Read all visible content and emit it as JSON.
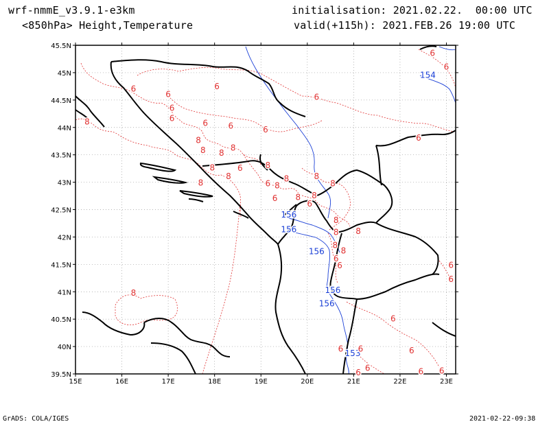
{
  "header": {
    "model": "wrf-nmmE_v3.9.1-e3km",
    "field": "<850hPa> Height,Temperature",
    "init": "initialisation: 2021.02.22.  00:00 UTC",
    "valid": "valid(+115h): 2021.FEB.26 19:00 UTC"
  },
  "axes": {
    "x_ticks": [
      "15E",
      "16E",
      "17E",
      "18E",
      "19E",
      "20E",
      "21E",
      "22E",
      "23E"
    ],
    "y_ticks": [
      "45.5N",
      "45N",
      "44.5N",
      "44N",
      "43.5N",
      "43N",
      "42.5N",
      "42N",
      "41.5N",
      "41N",
      "40.5N",
      "40N",
      "39.5N"
    ],
    "lon_range": [
      15,
      23.2
    ],
    "lat_range": [
      39.5,
      45.5
    ]
  },
  "contours": {
    "height_color": "#1a3fd6",
    "temperature_color": "#e03030",
    "height_labels": [
      {
        "text": "154",
        "lon": 22.6,
        "lat": 44.95
      },
      {
        "text": "156",
        "lon": 19.6,
        "lat": 42.4
      },
      {
        "text": "156",
        "lon": 19.6,
        "lat": 42.13
      },
      {
        "text": "156",
        "lon": 20.2,
        "lat": 41.73
      },
      {
        "text": "156",
        "lon": 20.55,
        "lat": 41.02
      },
      {
        "text": "156",
        "lon": 20.42,
        "lat": 40.78
      },
      {
        "text": "153",
        "lon": 20.98,
        "lat": 39.87
      }
    ],
    "temperature_labels": [
      {
        "text": "6",
        "lon": 16.25,
        "lat": 44.7
      },
      {
        "text": "6",
        "lon": 17.0,
        "lat": 44.6
      },
      {
        "text": "6",
        "lon": 17.08,
        "lat": 44.35
      },
      {
        "text": "6",
        "lon": 17.08,
        "lat": 44.16
      },
      {
        "text": "6",
        "lon": 17.8,
        "lat": 44.07
      },
      {
        "text": "6",
        "lon": 18.35,
        "lat": 44.02
      },
      {
        "text": "6",
        "lon": 19.1,
        "lat": 43.95
      },
      {
        "text": "6",
        "lon": 18.05,
        "lat": 44.74
      },
      {
        "text": "6",
        "lon": 20.2,
        "lat": 44.55
      },
      {
        "text": "6",
        "lon": 22.4,
        "lat": 43.8
      },
      {
        "text": "6",
        "lon": 22.7,
        "lat": 45.35
      },
      {
        "text": "6",
        "lon": 23.0,
        "lat": 45.1
      },
      {
        "text": "8",
        "lon": 15.25,
        "lat": 44.1
      },
      {
        "text": "8",
        "lon": 17.65,
        "lat": 43.76
      },
      {
        "text": "8",
        "lon": 17.75,
        "lat": 43.58
      },
      {
        "text": "8",
        "lon": 18.15,
        "lat": 43.53
      },
      {
        "text": "8",
        "lon": 18.4,
        "lat": 43.62
      },
      {
        "text": "6",
        "lon": 18.55,
        "lat": 43.25
      },
      {
        "text": "8",
        "lon": 17.95,
        "lat": 43.26
      },
      {
        "text": "8",
        "lon": 18.3,
        "lat": 43.1
      },
      {
        "text": "8",
        "lon": 17.7,
        "lat": 42.98
      },
      {
        "text": "8",
        "lon": 19.15,
        "lat": 43.3
      },
      {
        "text": "6",
        "lon": 19.15,
        "lat": 42.97
      },
      {
        "text": "8",
        "lon": 19.35,
        "lat": 42.93
      },
      {
        "text": "6",
        "lon": 19.3,
        "lat": 42.7
      },
      {
        "text": "8",
        "lon": 19.55,
        "lat": 43.06
      },
      {
        "text": "8",
        "lon": 20.2,
        "lat": 43.1
      },
      {
        "text": "8",
        "lon": 19.8,
        "lat": 42.72
      },
      {
        "text": "6",
        "lon": 20.05,
        "lat": 42.6
      },
      {
        "text": "8",
        "lon": 20.15,
        "lat": 42.75
      },
      {
        "text": "8",
        "lon": 20.55,
        "lat": 42.97
      },
      {
        "text": "8",
        "lon": 20.62,
        "lat": 42.3
      },
      {
        "text": "8",
        "lon": 20.62,
        "lat": 42.08
      },
      {
        "text": "8",
        "lon": 21.1,
        "lat": 42.1
      },
      {
        "text": "8",
        "lon": 20.6,
        "lat": 41.84
      },
      {
        "text": "8",
        "lon": 20.78,
        "lat": 41.74
      },
      {
        "text": "6",
        "lon": 20.62,
        "lat": 41.6
      },
      {
        "text": "6",
        "lon": 20.7,
        "lat": 41.47
      },
      {
        "text": "6",
        "lon": 23.1,
        "lat": 41.48
      },
      {
        "text": "6",
        "lon": 23.1,
        "lat": 41.22
      },
      {
        "text": "8",
        "lon": 16.25,
        "lat": 40.97
      },
      {
        "text": "6",
        "lon": 21.85,
        "lat": 40.5
      },
      {
        "text": "6",
        "lon": 20.72,
        "lat": 39.95
      },
      {
        "text": "6",
        "lon": 21.15,
        "lat": 39.95
      },
      {
        "text": "6",
        "lon": 22.25,
        "lat": 39.92
      },
      {
        "text": "6",
        "lon": 21.3,
        "lat": 39.6
      },
      {
        "text": "6",
        "lon": 21.1,
        "lat": 39.52
      },
      {
        "text": "6",
        "lon": 22.45,
        "lat": 39.54
      },
      {
        "text": "6",
        "lon": 22.9,
        "lat": 39.55
      }
    ]
  },
  "footer": {
    "left": "GrADS: COLA/IGES",
    "right": "2021-02-22-09:38"
  }
}
